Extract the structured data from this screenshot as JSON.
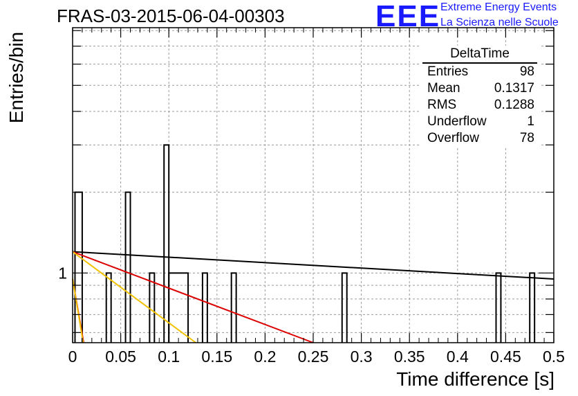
{
  "header": {
    "title": "FRAS-03-2015-06-04-00303",
    "logo_text": "EEE",
    "logo_line1": "Extreme Energy Events",
    "logo_line2": "La Scienza nelle Scuole"
  },
  "stats_box": {
    "title": "DeltaTime",
    "rows": [
      {
        "label": "Entries",
        "value": "98"
      },
      {
        "label": "Mean",
        "value": "0.1317"
      },
      {
        "label": "RMS",
        "value": "0.1288"
      },
      {
        "label": "Underflow",
        "value": "1"
      },
      {
        "label": "Overflow",
        "value": "78"
      }
    ]
  },
  "chart_data": {
    "type": "histogram",
    "title": "FRAS-03-2015-06-04-00303",
    "xlabel": "Time difference [s]",
    "ylabel": "Entries/bin",
    "xlim": [
      0,
      0.5
    ],
    "ylim": [
      0.55,
      8.2
    ],
    "y_scale": "log",
    "grid": true,
    "x_ticks": [
      "0",
      "0.05",
      "0.1",
      "0.15",
      "0.2",
      "0.25",
      "0.3",
      "0.35",
      "0.4",
      "0.45",
      "0.5"
    ],
    "x_tick_values": [
      0,
      0.05,
      0.1,
      0.15,
      0.2,
      0.25,
      0.3,
      0.35,
      0.4,
      0.45,
      0.5
    ],
    "y_tick_labels": [
      {
        "value": 1,
        "label": "1"
      }
    ],
    "bins": [
      {
        "x0": 0.0025,
        "x1": 0.01,
        "value": 2
      },
      {
        "x0": 0.035,
        "x1": 0.04,
        "value": 1
      },
      {
        "x0": 0.055,
        "x1": 0.06,
        "value": 2
      },
      {
        "x0": 0.08,
        "x1": 0.085,
        "value": 1
      },
      {
        "x0": 0.095,
        "x1": 0.1,
        "value": 3
      },
      {
        "x0": 0.1,
        "x1": 0.12,
        "value": 1
      },
      {
        "x0": 0.135,
        "x1": 0.14,
        "value": 1
      },
      {
        "x0": 0.165,
        "x1": 0.17,
        "value": 1
      },
      {
        "x0": 0.28,
        "x1": 0.285,
        "value": 1
      },
      {
        "x0": 0.44,
        "x1": 0.445,
        "value": 1
      },
      {
        "x0": 0.475,
        "x1": 0.48,
        "value": 1
      }
    ],
    "fit_lines": [
      {
        "color": "#000000",
        "points": [
          [
            0.0,
            1.2
          ],
          [
            0.5,
            0.95
          ]
        ]
      },
      {
        "color": "#dd0000",
        "points": [
          [
            0.0,
            1.2
          ],
          [
            0.25,
            0.55
          ]
        ]
      },
      {
        "color": "#f2c200",
        "points": [
          [
            0.0,
            1.2
          ],
          [
            0.128,
            0.55
          ]
        ]
      },
      {
        "color": "#dd0000",
        "points": [
          [
            0.0,
            0.95
          ],
          [
            0.0115,
            0.55
          ]
        ]
      },
      {
        "color": "#f2c200",
        "points": [
          [
            0.0,
            0.95
          ],
          [
            0.011,
            0.55
          ]
        ]
      }
    ]
  }
}
